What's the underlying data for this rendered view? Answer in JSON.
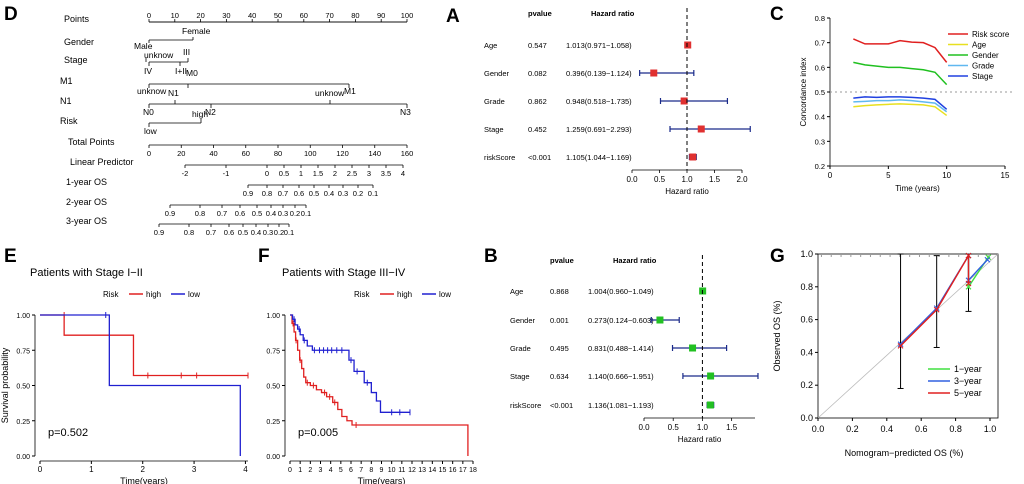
{
  "panel_letters": {
    "D": "D",
    "A": "A",
    "C": "C",
    "E": "E",
    "F": "F",
    "B": "B",
    "G": "G"
  },
  "nomogram": {
    "rows": {
      "points": "Points",
      "gender": "Gender",
      "stage": "Stage",
      "m1": "M1",
      "n1": "N1",
      "risk": "Risk",
      "total": "Total Points",
      "lp": "Linear Predictor",
      "os1": "1-year OS",
      "os2": "2-year OS",
      "os3": "3-year OS"
    },
    "points_ticks": [
      "0",
      "10",
      "20",
      "30",
      "40",
      "50",
      "60",
      "70",
      "80",
      "90",
      "100"
    ],
    "gender_labels": {
      "female": "Female",
      "male": "Male"
    },
    "stage_labels": {
      "unknow": "unknow",
      "iii": "III",
      "iv": "IV",
      "i_ii": "I+II"
    },
    "m1_labels": {
      "m0": "M0",
      "unknow": "unknow",
      "m1": "M1"
    },
    "n1_labels": {
      "unknow": "unknow",
      "n1": "N1",
      "n0": "N0",
      "n2": "N2",
      "n3": "N3"
    },
    "risk_labels": {
      "high": "high",
      "low": "low"
    },
    "total_ticks": [
      "0",
      "20",
      "40",
      "60",
      "80",
      "100",
      "120",
      "140",
      "160"
    ],
    "lp_ticks": [
      "-2",
      "-1",
      "0",
      "0.5",
      "1",
      "1.5",
      "2",
      "2.5",
      "3",
      "3.5",
      "4"
    ],
    "os1_ticks": [
      "0.9",
      "0.8",
      "0.7",
      "0.6",
      "0.5",
      "0.4",
      "0.3",
      "0.2",
      "0.1"
    ],
    "os2_ticks": [
      "0.9",
      "0.8",
      "0.7",
      "0.6",
      "0.5",
      "0.4",
      "0.3",
      "0.2",
      "0.1"
    ],
    "os3_ticks": [
      "0.9",
      "0.8",
      "0.7",
      "0.6",
      "0.5",
      "0.4",
      "0.3",
      "0.2",
      "0.1"
    ]
  },
  "chart_data": [
    {
      "id": "A",
      "type": "forest",
      "header_pvalue": "pvalue",
      "header_hr": "Hazard ratio",
      "xlabel": "Hazard ratio",
      "xlim": [
        0,
        2.0
      ],
      "xticks": [
        "0.0",
        "0.5",
        "1.0",
        "1.5",
        "2.0"
      ],
      "marker_color": "#e03030",
      "rows": [
        {
          "label": "Age",
          "pvalue": "0.547",
          "hr_text": "1.013(0.971−1.058)",
          "hr": 1.013,
          "lo": 0.971,
          "hi": 1.058
        },
        {
          "label": "Gender",
          "pvalue": "0.082",
          "hr_text": "0.396(0.139−1.124)",
          "hr": 0.396,
          "lo": 0.139,
          "hi": 1.124
        },
        {
          "label": "Grade",
          "pvalue": "0.862",
          "hr_text": "0.948(0.518−1.735)",
          "hr": 0.948,
          "lo": 0.518,
          "hi": 1.735
        },
        {
          "label": "Stage",
          "pvalue": "0.452",
          "hr_text": "1.259(0.691−2.293)",
          "hr": 1.259,
          "lo": 0.691,
          "hi": 2.293
        },
        {
          "label": "riskScore",
          "pvalue": "<0.001",
          "hr_text": "1.105(1.044−1.169)",
          "hr": 1.105,
          "lo": 1.044,
          "hi": 1.169
        }
      ]
    },
    {
      "id": "B",
      "type": "forest",
      "header_pvalue": "pvalue",
      "header_hr": "Hazard ratio",
      "xlabel": "Hazard ratio",
      "xlim": [
        0,
        1.9
      ],
      "xticks": [
        "0.0",
        "0.5",
        "1.0",
        "1.5"
      ],
      "marker_color": "#22c022",
      "rows": [
        {
          "label": "Age",
          "pvalue": "0.868",
          "hr_text": "1.004(0.960−1.049)",
          "hr": 1.004,
          "lo": 0.96,
          "hi": 1.049
        },
        {
          "label": "Gender",
          "pvalue": "0.001",
          "hr_text": "0.273(0.124−0.603)",
          "hr": 0.273,
          "lo": 0.124,
          "hi": 0.603
        },
        {
          "label": "Grade",
          "pvalue": "0.495",
          "hr_text": "0.831(0.488−1.414)",
          "hr": 0.831,
          "lo": 0.488,
          "hi": 1.414
        },
        {
          "label": "Stage",
          "pvalue": "0.634",
          "hr_text": "1.140(0.666−1.951)",
          "hr": 1.14,
          "lo": 0.666,
          "hi": 1.951
        },
        {
          "label": "riskScore",
          "pvalue": "<0.001",
          "hr_text": "1.136(1.081−1.193)",
          "hr": 1.136,
          "lo": 1.081,
          "hi": 1.193
        }
      ]
    },
    {
      "id": "C",
      "type": "line",
      "xlabel": "Time (years)",
      "ylabel": "Concordance index",
      "xlim": [
        0,
        15
      ],
      "ylim": [
        0.2,
        0.8
      ],
      "xticks": [
        "0",
        "5",
        "10",
        "15"
      ],
      "yticks": [
        "0.2",
        "0.3",
        "0.4",
        "0.5",
        "0.6",
        "0.7",
        "0.8"
      ],
      "reference_line": 0.5,
      "x": [
        2,
        3,
        4,
        5,
        6,
        7,
        8,
        9,
        10
      ],
      "series": [
        {
          "name": "Risk score",
          "color": "#e02020",
          "values": [
            0.715,
            0.695,
            0.695,
            0.695,
            0.708,
            0.702,
            0.7,
            0.68,
            0.62
          ]
        },
        {
          "name": "Age",
          "color": "#e8e020",
          "values": [
            0.44,
            0.445,
            0.448,
            0.45,
            0.452,
            0.45,
            0.448,
            0.44,
            0.405
          ]
        },
        {
          "name": "Gender",
          "color": "#20c020",
          "values": [
            0.62,
            0.61,
            0.605,
            0.6,
            0.6,
            0.595,
            0.59,
            0.58,
            0.53
          ]
        },
        {
          "name": "Grade",
          "color": "#60b8f0",
          "values": [
            0.46,
            0.462,
            0.465,
            0.465,
            0.468,
            0.465,
            0.46,
            0.455,
            0.42
          ]
        },
        {
          "name": "Stage",
          "color": "#2040e0",
          "values": [
            0.475,
            0.48,
            0.478,
            0.48,
            0.48,
            0.478,
            0.475,
            0.47,
            0.43
          ]
        }
      ]
    },
    {
      "id": "E",
      "type": "kaplan-meier",
      "title": "Patients with Stage I−II",
      "legend_title": "Risk",
      "xlabel": "Time(years)",
      "ylabel": "Survival probability",
      "pvalue": "p=0.502",
      "xlim": [
        0,
        4.05
      ],
      "ylim": [
        0,
        1
      ],
      "xticks": [
        "0",
        "1",
        "2",
        "3",
        "4"
      ],
      "yticks": [
        "0.00",
        "0.25",
        "0.50",
        "0.75",
        "1.00"
      ],
      "series": [
        {
          "name": "high",
          "color": "#e02020",
          "steps": [
            [
              0,
              1.0
            ],
            [
              0.47,
              0.857
            ],
            [
              1.82,
              0.571
            ],
            [
              4.05,
              0.571
            ]
          ],
          "censors": [
            [
              0.47,
              1.0
            ],
            [
              2.1,
              0.571
            ],
            [
              2.75,
              0.571
            ],
            [
              3.05,
              0.571
            ],
            [
              4.05,
              0.571
            ]
          ]
        },
        {
          "name": "low",
          "color": "#2020d0",
          "steps": [
            [
              0,
              1.0
            ],
            [
              1.35,
              0.5
            ],
            [
              3.9,
              0.0
            ]
          ],
          "censors": [
            [
              1.28,
              1.0
            ]
          ]
        }
      ]
    },
    {
      "id": "F",
      "type": "kaplan-meier",
      "title": "Patients with Stage III−IV",
      "legend_title": "Risk",
      "xlabel": "Time(years)",
      "ylabel": "",
      "pvalue": "p=0.005",
      "xlim": [
        0,
        18
      ],
      "ylim": [
        0,
        1
      ],
      "xticks": [
        "0",
        "1",
        "2",
        "3",
        "4",
        "5",
        "6",
        "7",
        "8",
        "9",
        "10",
        "11",
        "12",
        "13",
        "14",
        "15",
        "16",
        "17",
        "18"
      ],
      "yticks": [
        "0.00",
        "0.25",
        "0.50",
        "0.75",
        "1.00"
      ],
      "series": [
        {
          "name": "high",
          "color": "#e02020",
          "steps": [
            [
              0,
              1.0
            ],
            [
              0.2,
              0.94
            ],
            [
              0.4,
              0.88
            ],
            [
              0.55,
              0.82
            ],
            [
              0.75,
              0.75
            ],
            [
              0.95,
              0.68
            ],
            [
              1.15,
              0.62
            ],
            [
              1.35,
              0.56
            ],
            [
              1.55,
              0.52
            ],
            [
              2.0,
              0.5
            ],
            [
              2.6,
              0.47
            ],
            [
              3.1,
              0.45
            ],
            [
              3.6,
              0.42
            ],
            [
              4.2,
              0.38
            ],
            [
              4.7,
              0.33
            ],
            [
              5.1,
              0.28
            ],
            [
              5.6,
              0.25
            ],
            [
              6.1,
              0.22
            ],
            [
              17.5,
              0.22
            ],
            [
              17.5,
              0.0
            ]
          ],
          "censors": [
            [
              0.3,
              0.94
            ],
            [
              0.6,
              0.82
            ],
            [
              1.0,
              0.68
            ],
            [
              1.7,
              0.52
            ],
            [
              2.3,
              0.5
            ],
            [
              3.4,
              0.45
            ],
            [
              3.9,
              0.42
            ],
            [
              4.4,
              0.38
            ],
            [
              6.5,
              0.22
            ]
          ]
        },
        {
          "name": "low",
          "color": "#2020d0",
          "steps": [
            [
              0,
              1.0
            ],
            [
              0.25,
              0.97
            ],
            [
              0.5,
              0.93
            ],
            [
              0.75,
              0.9
            ],
            [
              1.0,
              0.86
            ],
            [
              1.3,
              0.82
            ],
            [
              1.7,
              0.78
            ],
            [
              2.2,
              0.75
            ],
            [
              5.3,
              0.75
            ],
            [
              5.8,
              0.68
            ],
            [
              6.3,
              0.6
            ],
            [
              7.3,
              0.52
            ],
            [
              8.0,
              0.45
            ],
            [
              8.5,
              0.39
            ],
            [
              8.9,
              0.31
            ],
            [
              11.8,
              0.31
            ]
          ],
          "censors": [
            [
              0.4,
              0.97
            ],
            [
              0.9,
              0.9
            ],
            [
              1.4,
              0.82
            ],
            [
              2.4,
              0.75
            ],
            [
              2.9,
              0.75
            ],
            [
              3.3,
              0.75
            ],
            [
              3.7,
              0.75
            ],
            [
              4.1,
              0.75
            ],
            [
              4.6,
              0.75
            ],
            [
              5.1,
              0.75
            ],
            [
              6.0,
              0.68
            ],
            [
              6.6,
              0.6
            ],
            [
              7.6,
              0.52
            ],
            [
              10.0,
              0.31
            ],
            [
              10.8,
              0.31
            ],
            [
              11.8,
              0.31
            ]
          ]
        }
      ]
    },
    {
      "id": "G",
      "type": "calibration",
      "xlabel": "Nomogram−predicted OS (%)",
      "ylabel": "Observed OS (%)",
      "xlim": [
        0,
        1
      ],
      "ylim": [
        0,
        1
      ],
      "xticks": [
        "0.0",
        "0.2",
        "0.4",
        "0.6",
        "0.8",
        "1.0"
      ],
      "yticks": [
        "0.0",
        "0.2",
        "0.4",
        "0.6",
        "0.8",
        "1.0"
      ],
      "series": [
        {
          "name": "1−year",
          "color": "#40e040",
          "points": [
            [
              0.99,
              0.98
            ],
            [
              0.875,
              0.99
            ],
            [
              0.875,
              0.8
            ]
          ]
        },
        {
          "name": "3−year",
          "color": "#3060e0",
          "points": [
            [
              0.985,
              0.965
            ],
            [
              0.875,
              0.99
            ],
            [
              0.875,
              0.84
            ],
            [
              0.69,
              0.67
            ],
            [
              0.48,
              0.45
            ]
          ]
        },
        {
          "name": "5−year",
          "color": "#e02020",
          "points": [
            [
              0.875,
              0.99
            ],
            [
              0.875,
              0.82
            ],
            [
              0.69,
              0.66
            ],
            [
              0.48,
              0.44
            ]
          ]
        }
      ],
      "errorbars": [
        [
          0.48,
          0.18,
          1.0
        ],
        [
          0.69,
          0.43,
          0.99
        ],
        [
          0.875,
          0.65,
          1.0
        ]
      ]
    }
  ]
}
